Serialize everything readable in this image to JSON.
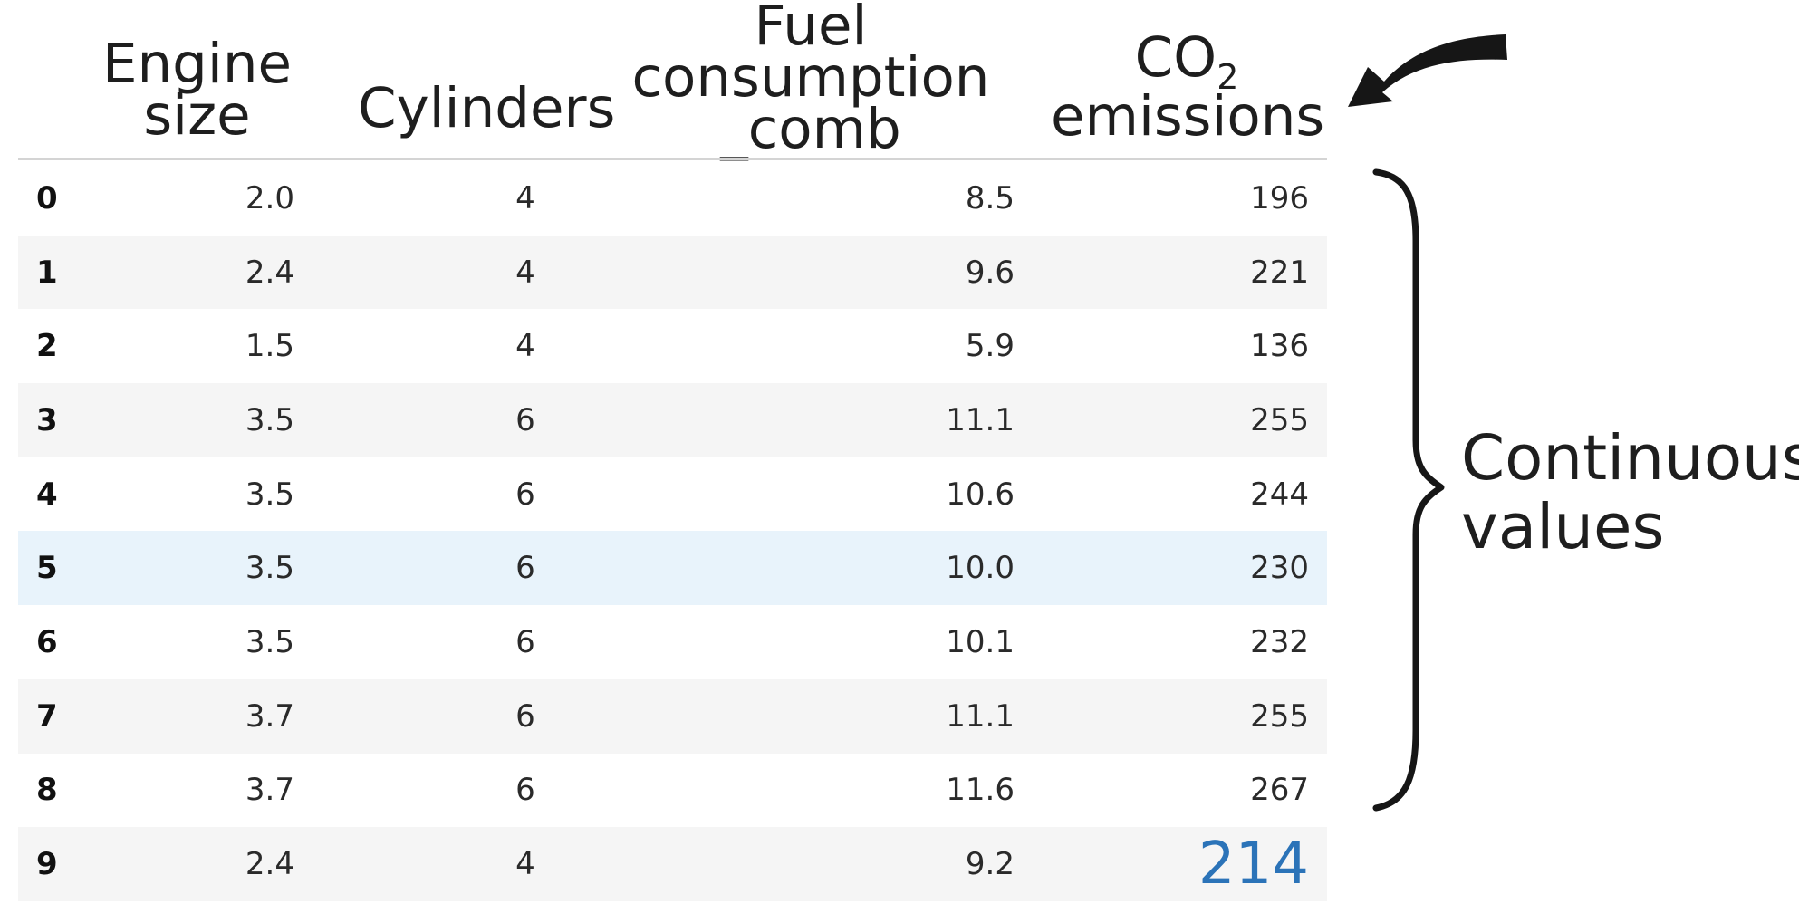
{
  "table": {
    "headers": {
      "engine_size": [
        "Engine",
        "size"
      ],
      "cylinders": "Cylinders",
      "fuel": [
        "Fuel",
        "consumption",
        "_comb"
      ],
      "co2": {
        "main": "CO",
        "sub": "2",
        "line2": "emissions"
      }
    },
    "rows": [
      {
        "index": "0",
        "engine_size": "2.0",
        "cylinders": "4",
        "fuel": "8.5",
        "co2": "196"
      },
      {
        "index": "1",
        "engine_size": "2.4",
        "cylinders": "4",
        "fuel": "9.6",
        "co2": "221"
      },
      {
        "index": "2",
        "engine_size": "1.5",
        "cylinders": "4",
        "fuel": "5.9",
        "co2": "136"
      },
      {
        "index": "3",
        "engine_size": "3.5",
        "cylinders": "6",
        "fuel": "11.1",
        "co2": "255"
      },
      {
        "index": "4",
        "engine_size": "3.5",
        "cylinders": "6",
        "fuel": "10.6",
        "co2": "244"
      },
      {
        "index": "5",
        "engine_size": "3.5",
        "cylinders": "6",
        "fuel": "10.0",
        "co2": "230"
      },
      {
        "index": "6",
        "engine_size": "3.5",
        "cylinders": "6",
        "fuel": "10.1",
        "co2": "232"
      },
      {
        "index": "7",
        "engine_size": "3.7",
        "cylinders": "6",
        "fuel": "11.1",
        "co2": "255"
      },
      {
        "index": "8",
        "engine_size": "3.7",
        "cylinders": "6",
        "fuel": "11.6",
        "co2": "267"
      },
      {
        "index": "9",
        "engine_size": "2.4",
        "cylinders": "4",
        "fuel": "9.2",
        "co2": "214"
      }
    ],
    "highlighted_row": 5,
    "emphasized_cell_row": 9
  },
  "annotation": {
    "lines": [
      "Continuous",
      "values"
    ],
    "icons": [
      "curved-arrow-icon",
      "curly-brace-icon"
    ]
  },
  "colors": {
    "highlight_row": "#e8f3fb",
    "alt_row": "#f5f5f5",
    "emphasis_value": "#2b73b8"
  }
}
